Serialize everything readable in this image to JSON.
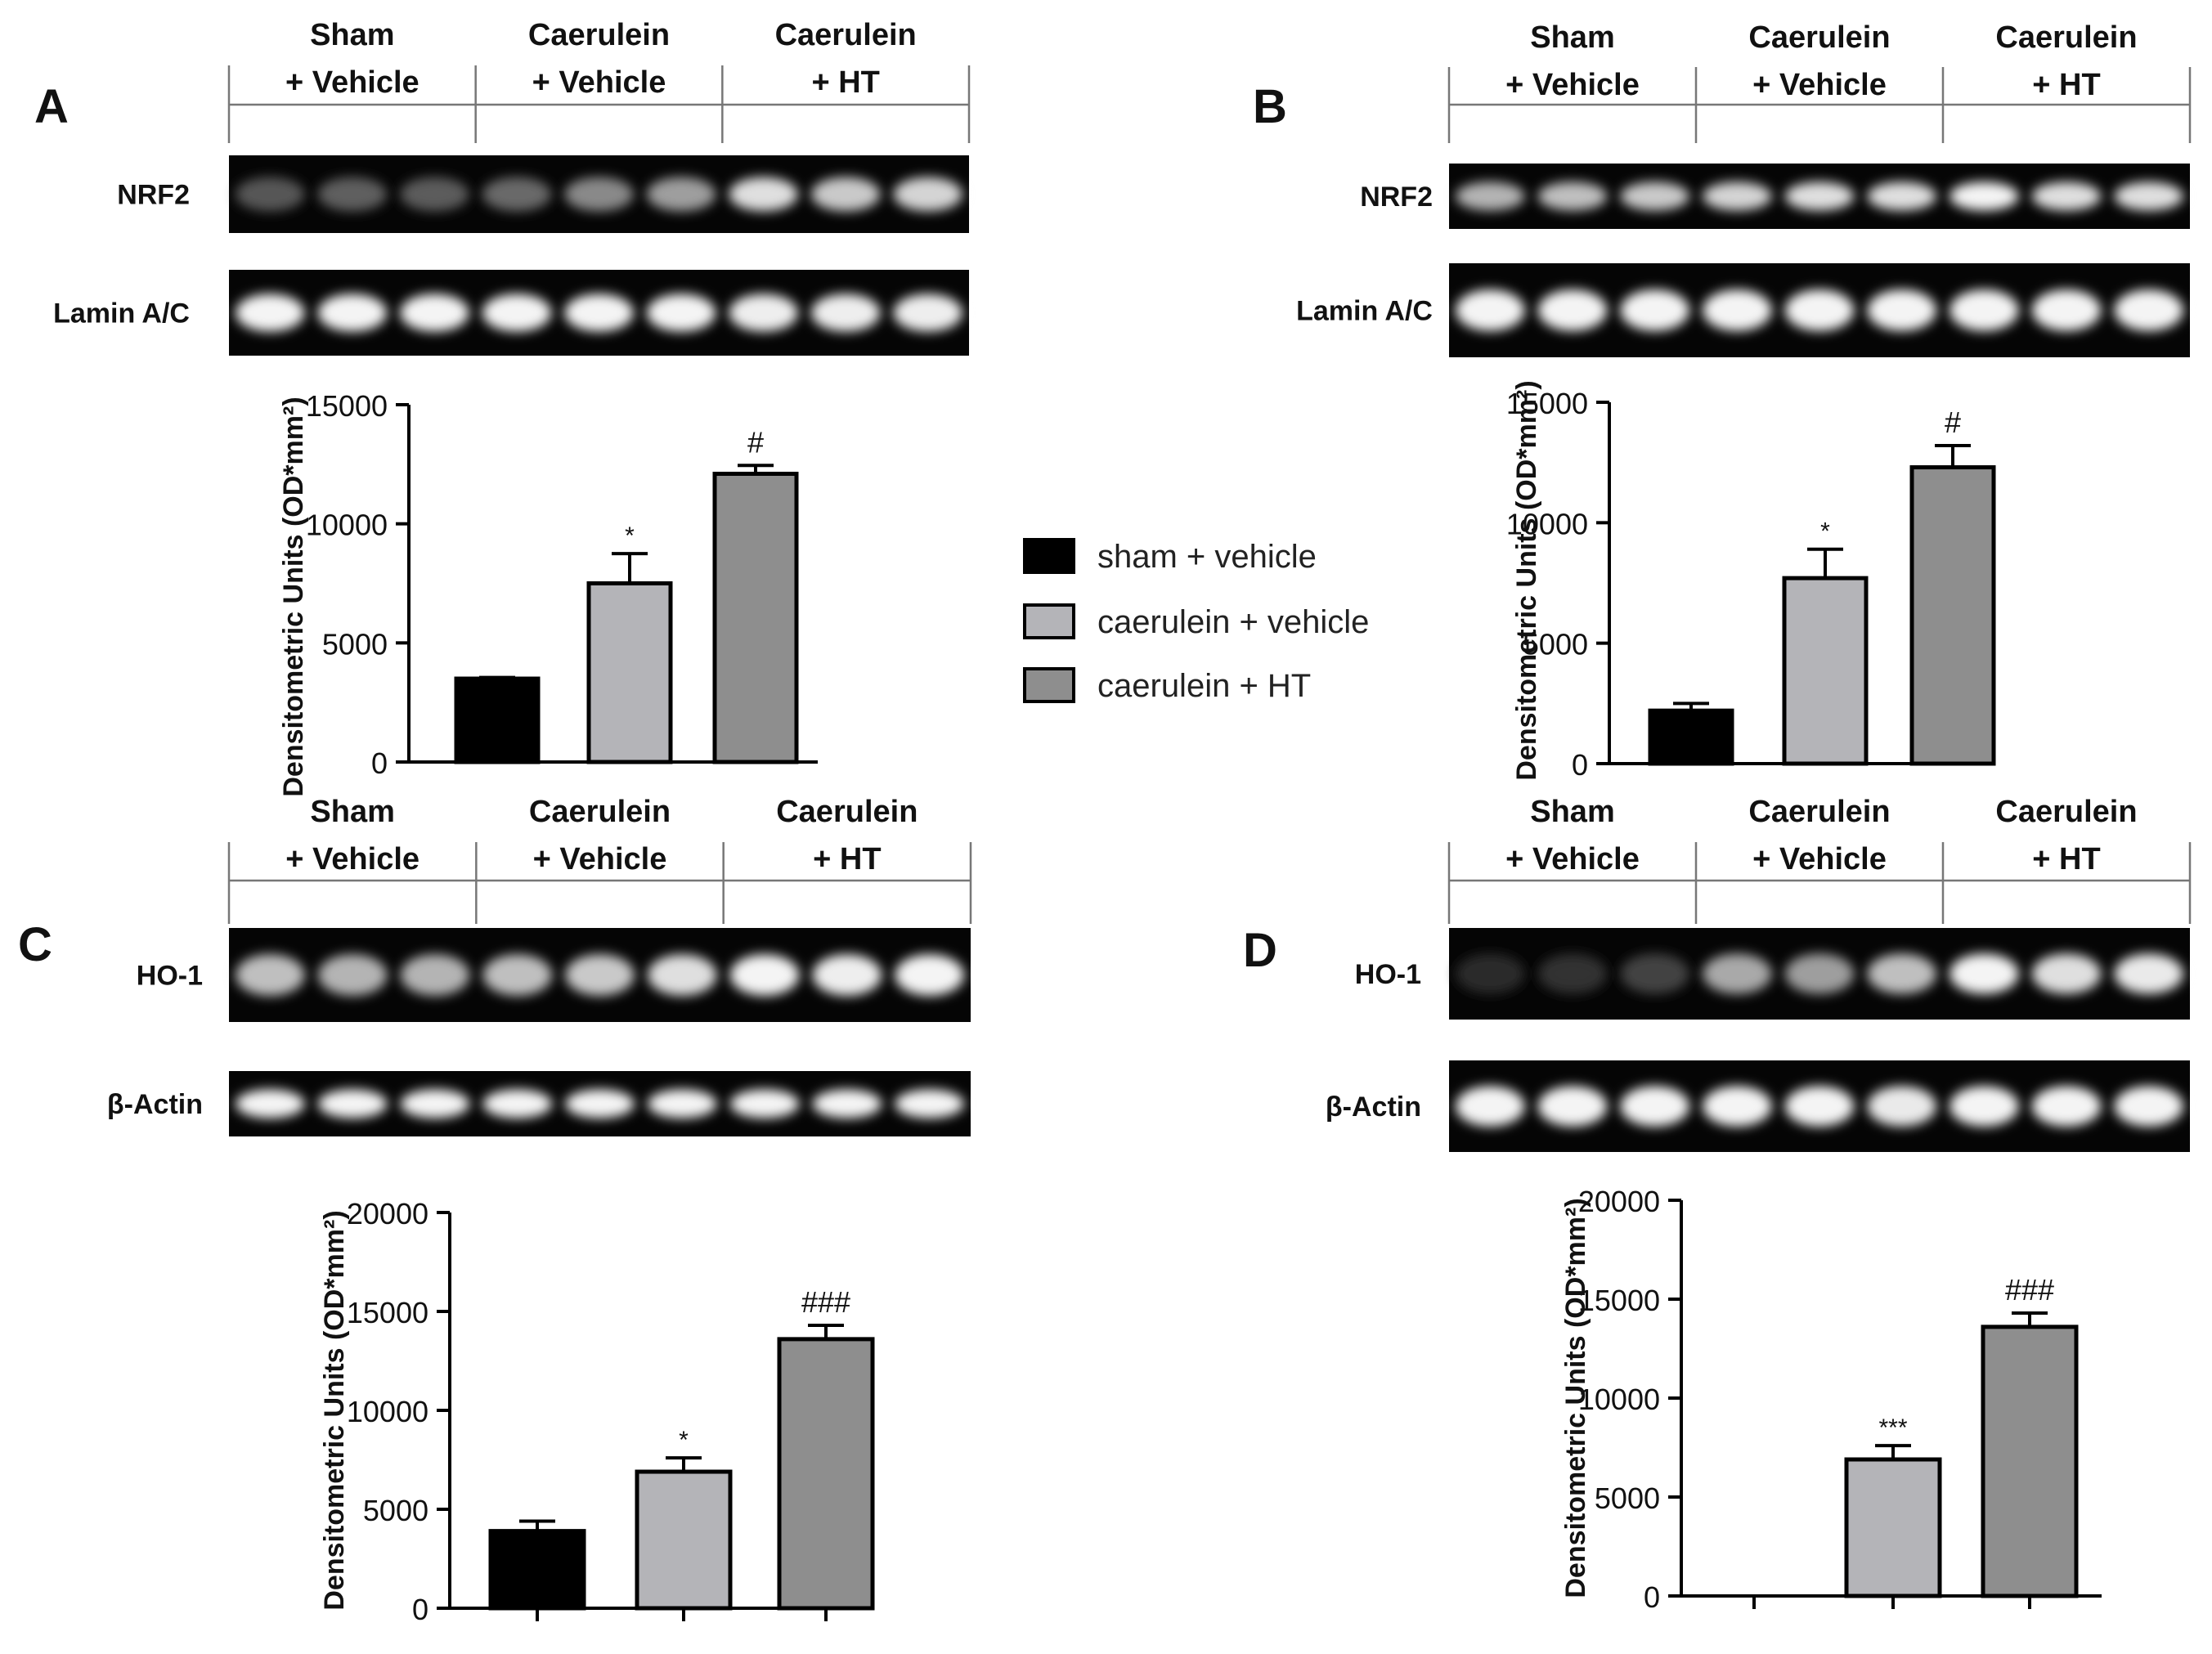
{
  "figure": {
    "legend": [
      {
        "label": "sham + vehicle",
        "color": "#000000"
      },
      {
        "label": "caerulein + vehicle",
        "color": "#b4b4b8"
      },
      {
        "label": "caerulein + HT",
        "color": "#8e8e8e"
      }
    ]
  },
  "panels": [
    {
      "letter": "A",
      "groups": [
        [
          "Sham",
          "+ Vehicle"
        ],
        [
          "Caerulein",
          "+ Vehicle"
        ],
        [
          "Caerulein",
          "+ HT"
        ]
      ],
      "blots": [
        {
          "label": "NRF2",
          "intensities": [
            0.22,
            0.25,
            0.24,
            0.3,
            0.45,
            0.55,
            0.85,
            0.75,
            0.8
          ]
        },
        {
          "label": "Lamin A/C",
          "intensities": [
            0.95,
            0.95,
            0.95,
            0.95,
            0.95,
            0.95,
            0.92,
            0.92,
            0.92
          ]
        }
      ]
    },
    {
      "letter": "B",
      "groups": [
        [
          "Sham",
          "+ Vehicle"
        ],
        [
          "Caerulein",
          "+ Vehicle"
        ],
        [
          "Caerulein",
          "+ HT"
        ]
      ],
      "blots": [
        {
          "label": "NRF2",
          "intensities": [
            0.65,
            0.7,
            0.75,
            0.8,
            0.85,
            0.85,
            0.95,
            0.85,
            0.85
          ]
        },
        {
          "label": "Lamin A/C",
          "intensities": [
            0.95,
            0.95,
            0.95,
            0.95,
            0.95,
            0.95,
            0.95,
            0.95,
            0.95
          ]
        }
      ]
    },
    {
      "letter": "C",
      "groups": [
        [
          "Sham",
          "+ Vehicle"
        ],
        [
          "Caerulein",
          "+ Vehicle"
        ],
        [
          "Caerulein",
          "+ HT"
        ]
      ],
      "blots": [
        {
          "label": "HO-1",
          "intensities": [
            0.7,
            0.65,
            0.65,
            0.7,
            0.75,
            0.85,
            0.95,
            0.92,
            0.95
          ]
        },
        {
          "label": "β-Actin",
          "intensities": [
            0.95,
            0.95,
            0.95,
            0.95,
            0.95,
            0.95,
            0.95,
            0.95,
            0.95
          ]
        }
      ]
    },
    {
      "letter": "D",
      "groups": [
        [
          "Sham",
          "+ Vehicle"
        ],
        [
          "Caerulein",
          "+ Vehicle"
        ],
        [
          "Caerulein",
          "+ HT"
        ]
      ],
      "blots": [
        {
          "label": "HO-1",
          "intensities": [
            0.02,
            0.05,
            0.12,
            0.6,
            0.55,
            0.7,
            0.95,
            0.85,
            0.9
          ]
        },
        {
          "label": "β-Actin",
          "intensities": [
            0.95,
            0.95,
            0.95,
            0.95,
            0.95,
            0.9,
            0.95,
            0.95,
            0.95
          ]
        }
      ]
    }
  ],
  "chart_data": [
    {
      "type": "bar",
      "panel": "A",
      "categories": [
        "sham + vehicle",
        "caerulein + vehicle",
        "caerulein + HT"
      ],
      "values": [
        3500,
        7500,
        12100
      ],
      "errors": [
        50,
        1250,
        350
      ],
      "annotations": [
        "",
        "*",
        "#"
      ],
      "ylabel": "Densitometric Units (OD*mm²)",
      "ylim": [
        0,
        15000
      ],
      "yticks": [
        0,
        5000,
        10000,
        15000
      ],
      "xticks": false,
      "colors": [
        "#000000",
        "#b4b4b8",
        "#8e8e8e"
      ]
    },
    {
      "type": "bar",
      "panel": "B",
      "categories": [
        "sham + vehicle",
        "caerulein + vehicle",
        "caerulein + HT"
      ],
      "values": [
        2200,
        7700,
        12300
      ],
      "errors": [
        300,
        1200,
        900
      ],
      "annotations": [
        "",
        "*",
        "#"
      ],
      "ylabel": "Densitometric Units (OD*mm²)",
      "ylim": [
        0,
        15000
      ],
      "yticks": [
        0,
        5000,
        10000,
        15000
      ],
      "xticks": false,
      "colors": [
        "#000000",
        "#b4b4b8",
        "#8e8e8e"
      ]
    },
    {
      "type": "bar",
      "panel": "C",
      "categories": [
        "sham + vehicle",
        "caerulein + vehicle",
        "caerulein + HT"
      ],
      "values": [
        3900,
        6900,
        13600
      ],
      "errors": [
        500,
        700,
        700
      ],
      "annotations": [
        "",
        "*",
        "###"
      ],
      "ylabel": "Densitometric Units (OD*mm²)",
      "ylim": [
        0,
        20000
      ],
      "yticks": [
        0,
        5000,
        10000,
        15000,
        20000
      ],
      "xticks": true,
      "colors": [
        "#000000",
        "#b4b4b8",
        "#8e8e8e"
      ]
    },
    {
      "type": "bar",
      "panel": "D",
      "categories": [
        "sham + vehicle",
        "caerulein + vehicle",
        "caerulein + HT"
      ],
      "values": [
        0,
        6900,
        13600
      ],
      "errors": [
        0,
        700,
        700
      ],
      "annotations": [
        "",
        "***",
        "###"
      ],
      "ylabel": "Densitometric Units (OD*mm²)",
      "ylim": [
        0,
        20000
      ],
      "yticks": [
        0,
        5000,
        10000,
        15000,
        20000
      ],
      "xticks": true,
      "colors": [
        "#000000",
        "#b4b4b8",
        "#8e8e8e"
      ]
    }
  ]
}
